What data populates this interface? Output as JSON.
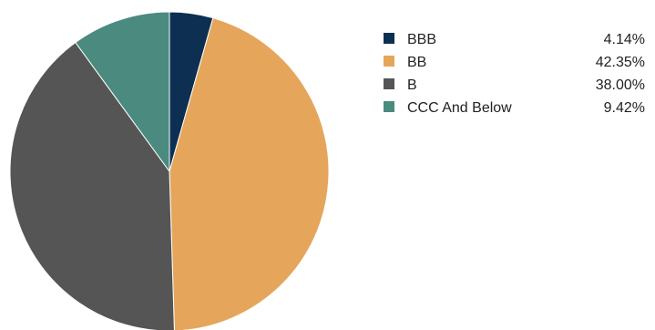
{
  "chart_data": {
    "type": "pie",
    "title": "",
    "start_angle_deg": 0,
    "direction": "clockwise",
    "legend_position": "right",
    "slices": [
      {
        "label": "BBB",
        "value": 4.14,
        "display": "4.14%",
        "color": "#0d2f52"
      },
      {
        "label": "BB",
        "value": 42.35,
        "display": "42.35%",
        "color": "#e5a65c"
      },
      {
        "label": "B",
        "value": 38.0,
        "display": "38.00%",
        "color": "#555555"
      },
      {
        "label": "CCC And Below",
        "value": 9.42,
        "display": "9.42%",
        "color": "#4a8a7f"
      }
    ]
  }
}
